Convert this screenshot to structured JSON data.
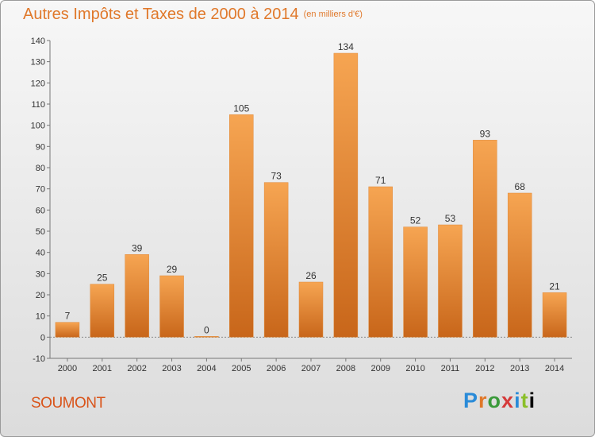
{
  "title": "Autres Impôts et Taxes de 2000 à 2014",
  "unit_note": "(en milliers d'€)",
  "city": "SOUMONT",
  "logo_text": "Proxiti",
  "colors": {
    "title": "#e0782a",
    "bar_top": "#f6a552",
    "bar_bottom": "#c8661a",
    "city": "#d9541a"
  },
  "chart_data": {
    "type": "bar",
    "title": "Autres Impôts et Taxes de 2000 à 2014",
    "categories": [
      "2000",
      "2001",
      "2002",
      "2003",
      "2004",
      "2005",
      "2006",
      "2007",
      "2008",
      "2009",
      "2010",
      "2011",
      "2012",
      "2013",
      "2014"
    ],
    "values": [
      7,
      25,
      39,
      29,
      0,
      105,
      73,
      26,
      134,
      71,
      52,
      53,
      93,
      68,
      21
    ],
    "ylim": [
      -10,
      140
    ],
    "yticks": [
      -10,
      0,
      10,
      20,
      30,
      40,
      50,
      60,
      70,
      80,
      90,
      100,
      110,
      120,
      130,
      140
    ],
    "grid": false,
    "data_labels": true
  }
}
